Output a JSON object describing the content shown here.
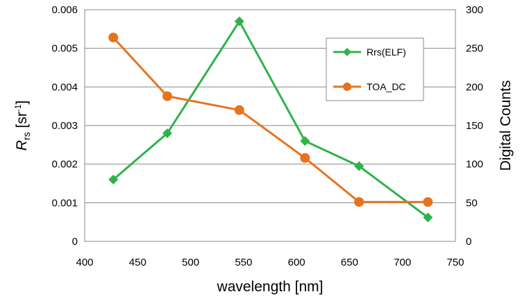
{
  "chart_data": {
    "type": "line",
    "x_label": "wavelength [nm]",
    "y_label_left": {
      "main": "R",
      "sub": "rs",
      "unit_open": " [sr",
      "unit_sup": "-1",
      "unit_close": "]"
    },
    "y_label_right": "Digital Counts",
    "x_range": [
      400,
      750
    ],
    "x_ticks": [
      400,
      450,
      500,
      550,
      600,
      650,
      700,
      750
    ],
    "y_left_range": [
      0,
      0.006
    ],
    "y_left_ticks": [
      "0",
      "0.001",
      "0.002",
      "0.003",
      "0.004",
      "0.005",
      "0.006"
    ],
    "y_right_range": [
      0,
      300
    ],
    "y_right_ticks": [
      "0",
      "50",
      "100",
      "150",
      "200",
      "250",
      "300"
    ],
    "grid": "horizontal",
    "legend_position": "upper-right inside plot",
    "series": [
      {
        "name": "Rrs(ELF)",
        "axis": "left",
        "marker": "diamond",
        "color": "#2db34a",
        "x": [
          427,
          478,
          546,
          608,
          659,
          724
        ],
        "y": [
          0.0016,
          0.0028,
          0.0057,
          0.0026,
          0.00195,
          0.00062
        ]
      },
      {
        "name": "TOA_DC",
        "axis": "right",
        "marker": "circle",
        "color": "#e8731e",
        "x": [
          427,
          478,
          546,
          608,
          659,
          724
        ],
        "y": [
          264,
          188,
          170,
          108,
          51,
          51
        ]
      }
    ]
  }
}
